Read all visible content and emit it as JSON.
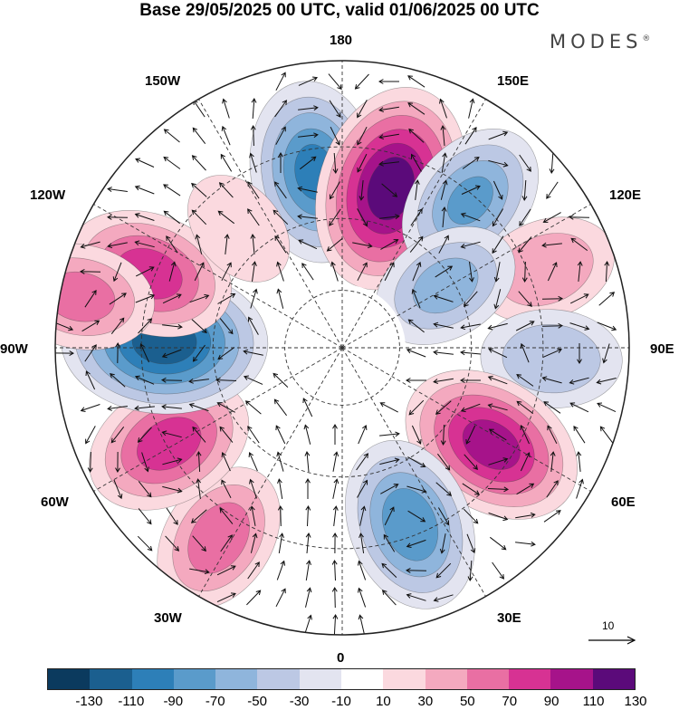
{
  "title": "Base 29/05/2025 00 UTC, valid 01/06/2025 00 UTC",
  "brand": "MODES",
  "brand_mark": "®",
  "longitude_labels": {
    "top": "180",
    "bottom": "0",
    "left": "90W",
    "right": "90E",
    "upper_left_1": "150W",
    "upper_left_2": "120W",
    "upper_right_1": "150E",
    "upper_right_2": "120E",
    "lower_left_1": "60W",
    "lower_left_2": "30W",
    "lower_right_1": "60E",
    "lower_right_2": "30E"
  },
  "reference_vector": {
    "label": "10"
  },
  "colorbar": {
    "colors": [
      "#0b3a5e",
      "#1b5f8f",
      "#2d7fb8",
      "#5a9bcb",
      "#8fb5dc",
      "#bcc8e4",
      "#e3e4f0",
      "#ffffff",
      "#fbd9df",
      "#f4a9bf",
      "#e96fa3",
      "#d73293",
      "#a6138a",
      "#5b0a7a"
    ],
    "ticks": [
      "-130",
      "-110",
      "-90",
      "-70",
      "-50",
      "-30",
      "-10",
      "10",
      "30",
      "50",
      "70",
      "90",
      "110",
      "130"
    ]
  },
  "anomaly_centers": [
    {
      "lon": -171,
      "dist": 0.62,
      "value": -95
    },
    {
      "lon": 163,
      "dist": 0.58,
      "value": 125
    },
    {
      "lon": 139,
      "dist": 0.68,
      "value": -70
    },
    {
      "lon": 111,
      "dist": 0.76,
      "value": 45
    },
    {
      "lon": 121,
      "dist": 0.42,
      "value": -55
    },
    {
      "lon": 87,
      "dist": 0.73,
      "value": -45
    },
    {
      "lon": 57,
      "dist": 0.62,
      "value": 100
    },
    {
      "lon": 21,
      "dist": 0.66,
      "value": -85
    },
    {
      "lon": -33,
      "dist": 0.79,
      "value": 60
    },
    {
      "lon": -61,
      "dist": 0.69,
      "value": 80
    },
    {
      "lon": -92,
      "dist": 0.62,
      "value": -125
    },
    {
      "lon": -111,
      "dist": 0.72,
      "value": 80
    },
    {
      "lon": -101,
      "dist": 0.93,
      "value": 55
    },
    {
      "lon": -139,
      "dist": 0.55,
      "value": 20
    }
  ]
}
